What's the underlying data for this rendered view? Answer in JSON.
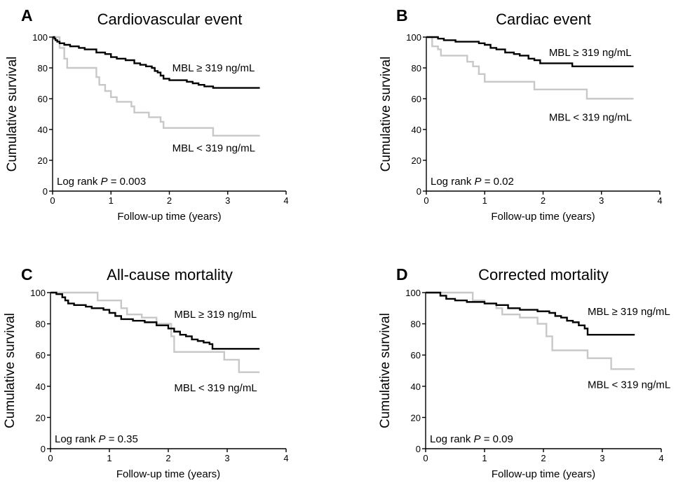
{
  "chart_data": [
    {
      "type": "line",
      "step": true,
      "letter": "A",
      "title": "Cardiovascular event",
      "xlabel": "Follow-up time (years)",
      "ylabel": "Cumulative survival",
      "xlim": [
        0,
        4
      ],
      "ylim": [
        0,
        100
      ],
      "xticks": [
        0,
        1,
        2,
        3,
        4
      ],
      "yticks": [
        0,
        20,
        40,
        60,
        80,
        100
      ],
      "annotation": {
        "pre": "Log rank ",
        "italic": "P",
        "post": " = 0.003"
      },
      "series": [
        {
          "name": "MBL ≥ 319 ng/mL",
          "color": "#000000",
          "x": [
            0,
            0.03,
            0.05,
            0.08,
            0.12,
            0.2,
            0.3,
            0.45,
            0.55,
            0.75,
            0.9,
            1.0,
            1.1,
            1.25,
            1.4,
            1.5,
            1.6,
            1.7,
            1.75,
            1.8,
            1.85,
            1.9,
            2.0,
            2.3,
            2.4,
            2.5,
            2.6,
            2.75,
            3.0,
            3.55
          ],
          "y": [
            100,
            99,
            98,
            97,
            96,
            95,
            94,
            93,
            92,
            90,
            89,
            87,
            86,
            85,
            83,
            82,
            81,
            80,
            78,
            77,
            75,
            73,
            72,
            71,
            70,
            69,
            68,
            67,
            67,
            67
          ],
          "label_pos": [
            2.05,
            80
          ]
        },
        {
          "name": "MBL < 319 ng/mL",
          "color": "#c8c8c8",
          "x": [
            0,
            0.12,
            0.2,
            0.25,
            0.75,
            0.8,
            0.9,
            1.0,
            1.1,
            1.35,
            1.4,
            1.65,
            1.85,
            1.9,
            2.3,
            2.75,
            3.55
          ],
          "y": [
            100,
            93,
            86,
            80,
            74,
            69,
            65,
            61,
            58,
            55,
            51,
            48,
            45,
            41,
            41,
            36,
            36
          ],
          "label_pos": [
            2.05,
            28
          ]
        }
      ]
    },
    {
      "type": "line",
      "step": true,
      "letter": "B",
      "title": "Cardiac event",
      "xlabel": "Follow-up time (years)",
      "ylabel": "Cumulative survival",
      "xlim": [
        0,
        4
      ],
      "ylim": [
        0,
        100
      ],
      "xticks": [
        0,
        1,
        2,
        3,
        4
      ],
      "yticks": [
        0,
        20,
        40,
        60,
        80,
        100
      ],
      "annotation": {
        "pre": "Log rank ",
        "italic": "P",
        "post": " = 0.02"
      },
      "series": [
        {
          "name": "MBL ≥ 319 ng/mL",
          "color": "#000000",
          "x": [
            0,
            0.2,
            0.3,
            0.5,
            0.9,
            1.0,
            1.1,
            1.2,
            1.35,
            1.5,
            1.6,
            1.75,
            1.85,
            1.95,
            2.3,
            2.5,
            2.75,
            3.0,
            3.55
          ],
          "y": [
            100,
            99,
            98,
            97,
            96,
            95,
            93,
            92,
            90,
            89,
            88,
            86,
            85,
            83,
            83,
            81,
            81,
            81,
            81
          ],
          "label_pos": [
            2.1,
            90
          ]
        },
        {
          "name": "MBL < 319 ng/mL",
          "color": "#c8c8c8",
          "x": [
            0,
            0.1,
            0.2,
            0.25,
            0.7,
            0.8,
            0.9,
            1.0,
            1.8,
            1.85,
            2.7,
            2.75,
            3.55
          ],
          "y": [
            100,
            94,
            92,
            88,
            84,
            81,
            76,
            71,
            71,
            66,
            66,
            60,
            60
          ],
          "label_pos": [
            2.1,
            48
          ]
        }
      ]
    },
    {
      "type": "line",
      "step": true,
      "letter": "C",
      "title": "All-cause mortality",
      "xlabel": "Follow-up time (years)",
      "ylabel": "Cumulative survival",
      "xlim": [
        0,
        4
      ],
      "ylim": [
        0,
        100
      ],
      "xticks": [
        0,
        1,
        2,
        3,
        4
      ],
      "yticks": [
        0,
        20,
        40,
        60,
        80,
        100
      ],
      "annotation": {
        "pre": "Log rank ",
        "italic": "P",
        "post": " = 0.35"
      },
      "series": [
        {
          "name": "MBL ≥ 319 ng/mL",
          "color": "#000000",
          "x": [
            0,
            0.1,
            0.2,
            0.25,
            0.3,
            0.4,
            0.6,
            0.7,
            0.9,
            1.0,
            1.1,
            1.2,
            1.4,
            1.6,
            1.8,
            2.0,
            2.1,
            2.2,
            2.3,
            2.4,
            2.5,
            2.6,
            2.7,
            2.75,
            3.0,
            3.55
          ],
          "y": [
            100,
            99,
            97,
            95,
            93,
            92,
            91,
            90,
            89,
            87,
            85,
            83,
            82,
            81,
            79,
            77,
            75,
            73,
            72,
            70,
            69,
            68,
            67,
            64,
            64,
            64
          ],
          "label_pos": [
            2.1,
            86
          ]
        },
        {
          "name": "MBL < 319 ng/mL",
          "color": "#c8c8c8",
          "x": [
            0,
            0.75,
            0.8,
            1.0,
            1.2,
            1.3,
            1.55,
            1.8,
            2.05,
            2.1,
            2.75,
            2.95,
            3.2,
            3.55
          ],
          "y": [
            100,
            100,
            95,
            95,
            90,
            86,
            84,
            80,
            72,
            62,
            62,
            57,
            49,
            49
          ],
          "label_pos": [
            2.1,
            39
          ]
        }
      ]
    },
    {
      "type": "line",
      "step": true,
      "letter": "D",
      "title": "Corrected mortality",
      "xlabel": "Follow-up time (years)",
      "ylabel": "Cumulative survival",
      "xlim": [
        0,
        4
      ],
      "ylim": [
        0,
        100
      ],
      "xticks": [
        0,
        1,
        2,
        3,
        4
      ],
      "yticks": [
        0,
        20,
        40,
        60,
        80,
        100
      ],
      "annotation": {
        "pre": "Log rank ",
        "italic": "P",
        "post": " = 0.09"
      },
      "series": [
        {
          "name": "MBL ≥ 319 ng/mL",
          "color": "#000000",
          "x": [
            0,
            0.25,
            0.35,
            0.5,
            0.7,
            1.0,
            1.2,
            1.4,
            1.6,
            1.9,
            2.1,
            2.2,
            2.3,
            2.4,
            2.5,
            2.6,
            2.7,
            2.75,
            3.0,
            3.55
          ],
          "y": [
            100,
            98,
            96,
            95,
            94,
            93,
            92,
            90,
            89,
            88,
            87,
            85,
            84,
            82,
            81,
            79,
            77,
            73,
            73,
            73
          ],
          "label_pos": [
            2.75,
            88
          ]
        },
        {
          "name": "MBL < 319 ng/mL",
          "color": "#c8c8c8",
          "x": [
            0,
            0.75,
            0.8,
            1.0,
            1.2,
            1.3,
            1.6,
            1.9,
            2.05,
            2.15,
            2.7,
            2.75,
            3.1,
            3.15,
            3.55
          ],
          "y": [
            100,
            100,
            95,
            93,
            90,
            86,
            84,
            80,
            72,
            63,
            63,
            58,
            58,
            51,
            51
          ],
          "label_pos": [
            2.75,
            41
          ]
        }
      ]
    }
  ]
}
